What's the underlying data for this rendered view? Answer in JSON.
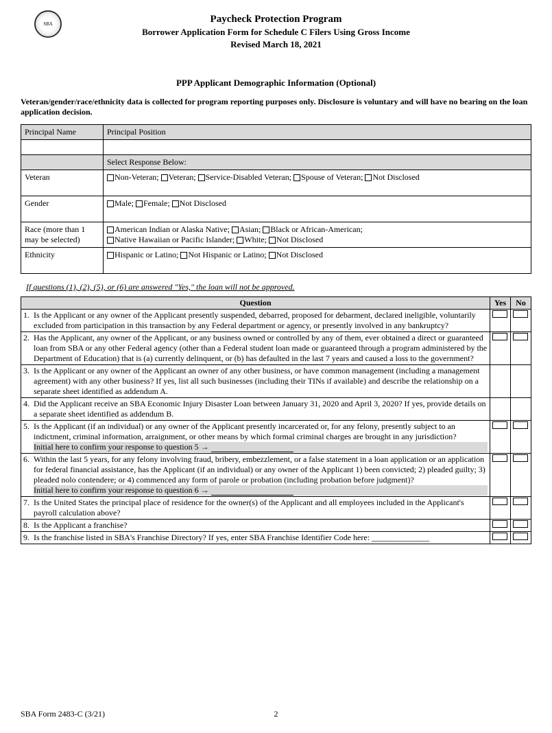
{
  "header": {
    "title": "Paycheck Protection Program",
    "subtitle": "Borrower Application Form for Schedule C Filers Using Gross Income",
    "revised": "Revised March 18, 2021"
  },
  "section_title": "PPP Applicant Demographic Information (Optional)",
  "intro": "Veteran/gender/race/ethnicity data is collected for program reporting purposes only. Disclosure is voluntary and will have no bearing on the loan application decision.",
  "demo": {
    "principal_name_label": "Principal Name",
    "principal_position_label": "Principal Position",
    "select_response": "Select Response Below:",
    "rows": {
      "veteran": {
        "label": "Veteran",
        "opts": [
          "Non-Veteran;",
          "Veteran;",
          "Service-Disabled Veteran;",
          "Spouse of Veteran;",
          "Not Disclosed"
        ]
      },
      "gender": {
        "label": "Gender",
        "opts": [
          "Male;",
          "Female;",
          "Not Disclosed"
        ]
      },
      "race": {
        "label": "Race (more than 1 may be selected)",
        "opts_line1": [
          "American Indian or Alaska Native;",
          "Asian;",
          "Black or African-American;"
        ],
        "opts_line2": [
          "Native Hawaiian or Pacific Islander;",
          "White;",
          "Not Disclosed"
        ]
      },
      "ethnicity": {
        "label": "Ethnicity",
        "opts": [
          "Hispanic or Latino;",
          "Not Hispanic or Latino;",
          "Not Disclosed"
        ]
      }
    }
  },
  "note": "If questions (1), (2), (5), or (6) are answered \"Yes,\" the loan will not be approved.",
  "qheaders": {
    "question": "Question",
    "yes": "Yes",
    "no": "No"
  },
  "questions": [
    {
      "n": "1.",
      "t": "Is the Applicant or any owner of the Applicant presently suspended, debarred, proposed for debarment, declared ineligible, voluntarily excluded from participation in this transaction by any Federal department or agency, or presently involved in any bankruptcy?"
    },
    {
      "n": "2.",
      "t": "Has the Applicant, any owner of the Applicant, or any business owned or controlled by any of them, ever obtained a direct or guaranteed loan from SBA or any other Federal agency (other than a Federal student loan made or guaranteed through a program administered by the Department of Education) that is (a) currently delinquent, or (b) has defaulted in the last 7 years and caused a loss to the government?"
    },
    {
      "n": "3.",
      "t": "Is the Applicant or any owner of the Applicant an owner of any other business, or have common management (including a management agreement) with any other business? If yes, list all such businesses (including their TINs if available) and describe the relationship on a separate sheet identified as addendum A."
    },
    {
      "n": "4.",
      "t": "Did the Applicant receive an SBA Economic Injury Disaster Loan between January 31, 2020 and April 3, 2020? If yes, provide details on a separate sheet identified as addendum B."
    },
    {
      "n": "5.",
      "t": "Is the Applicant (if an individual) or any owner of the Applicant presently incarcerated or, for any felony, presently subject to an indictment, criminal information, arraignment, or other means by which formal criminal charges are brought in any jurisdiction?",
      "initial": "Initial here to confirm your response to question 5 →"
    },
    {
      "n": "6.",
      "t": "Within the last 5 years, for any felony involving fraud, bribery, embezzlement, or a false statement in a loan application or an application for federal financial assistance, has the Applicant (if an individual) or any owner of the Applicant 1) been convicted; 2) pleaded guilty; 3) pleaded nolo contendere; or 4) commenced any form of parole or probation (including probation before judgment)?",
      "initial": "Initial here to confirm your response to question 6 →"
    },
    {
      "n": "7.",
      "t": "Is the United States the principal place of residence for the owner(s) of the Applicant and all employees included in the Applicant's payroll calculation above?"
    },
    {
      "n": "8.",
      "t": "Is the Applicant a franchise?"
    },
    {
      "n": "9.",
      "t": "Is the franchise listed in SBA's Franchise Directory? If yes, enter SBA Franchise Identifier Code here: ______________"
    }
  ],
  "footer": {
    "form": "SBA Form 2483-C (3/21)",
    "page": "2"
  }
}
